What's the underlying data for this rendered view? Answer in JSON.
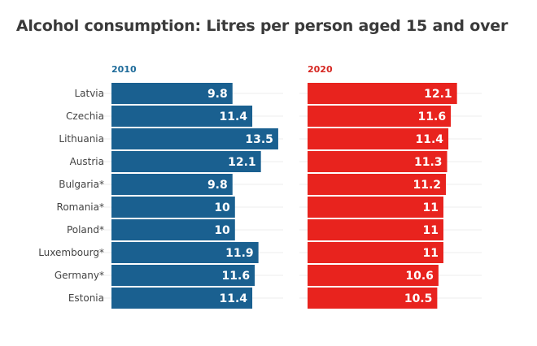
{
  "chart_data": {
    "type": "bar",
    "orientation": "horizontal",
    "title": "Alcohol consumption: Litres per person aged 15 and over",
    "xlabel": "",
    "ylabel": "",
    "categories": [
      "Latvia",
      "Czechia",
      "Lithuania",
      "Austria",
      "Bulgaria*",
      "Romania*",
      "Poland*",
      "Luxembourg*",
      "Germany*",
      "Estonia"
    ],
    "series": [
      {
        "name": "2010",
        "color": "#1a6090",
        "label_color": "#1e6b9a",
        "values": [
          9.8,
          11.4,
          13.5,
          12.1,
          9.8,
          10,
          10,
          11.9,
          11.6,
          11.4
        ],
        "labels": [
          "9.8",
          "11.4",
          "13.5",
          "12.1",
          "9.8",
          "10",
          "10",
          "11.9",
          "11.6",
          "11.4"
        ]
      },
      {
        "name": "2020",
        "color": "#e8231e",
        "label_color": "#d62722",
        "values": [
          12.1,
          11.6,
          11.4,
          11.3,
          11.2,
          11,
          11,
          11,
          10.6,
          10.5
        ],
        "labels": [
          "12.1",
          "11.6",
          "11.4",
          "11.3",
          "11.2",
          "11",
          "11",
          "11",
          "10.6",
          "10.5"
        ]
      }
    ],
    "xlim": [
      0,
      13.5
    ],
    "grid": true,
    "layout": "small-multiples side-by-side"
  }
}
